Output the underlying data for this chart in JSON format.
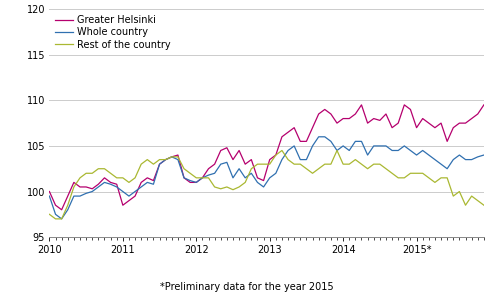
{
  "title": "",
  "footnote": "*Preliminary data for the year 2015",
  "ylim": [
    95,
    120
  ],
  "yticks": [
    95,
    100,
    105,
    110,
    115,
    120
  ],
  "xlim_start": 2010.0,
  "xlim_end": 2015.92,
  "xtick_labels": [
    "2010",
    "2011",
    "2012",
    "2013",
    "2014",
    "2015*"
  ],
  "legend_labels": [
    "Greater Helsinki",
    "Whole country",
    "Rest of the country"
  ],
  "colors": [
    "#b5006e",
    "#3070b0",
    "#aab832"
  ],
  "background_color": "#ffffff",
  "grid_color": "#cccccc",
  "greater_helsinki": [
    100.0,
    98.5,
    98.0,
    99.5,
    101.0,
    100.5,
    100.5,
    100.3,
    100.8,
    101.5,
    101.0,
    100.8,
    98.5,
    99.0,
    99.5,
    101.0,
    101.5,
    101.2,
    103.0,
    103.5,
    103.8,
    104.0,
    101.5,
    101.0,
    101.0,
    101.5,
    102.5,
    103.0,
    104.5,
    104.8,
    103.5,
    104.5,
    103.0,
    103.5,
    101.5,
    101.2,
    103.5,
    104.0,
    106.0,
    106.5,
    107.0,
    105.5,
    105.5,
    107.0,
    108.5,
    109.0,
    108.5,
    107.5,
    108.0,
    108.0,
    108.5,
    109.5,
    107.5,
    108.0,
    107.8,
    108.5,
    107.0,
    107.5,
    109.5,
    109.0,
    107.0,
    108.0,
    107.5,
    107.0,
    107.5,
    105.5,
    107.0,
    107.5,
    107.5,
    108.0,
    108.5,
    109.5
  ],
  "whole_country": [
    99.5,
    97.5,
    97.0,
    98.0,
    99.5,
    99.5,
    99.8,
    100.0,
    100.5,
    101.0,
    100.8,
    100.5,
    100.0,
    99.5,
    100.0,
    100.5,
    101.0,
    100.8,
    103.0,
    103.5,
    103.8,
    103.5,
    101.5,
    101.2,
    101.0,
    101.5,
    101.8,
    102.0,
    103.0,
    103.2,
    101.5,
    102.5,
    101.5,
    102.0,
    101.0,
    100.5,
    101.5,
    102.0,
    103.5,
    104.5,
    105.0,
    103.5,
    103.5,
    105.0,
    106.0,
    106.0,
    105.5,
    104.5,
    105.0,
    104.5,
    105.5,
    105.5,
    104.0,
    105.0,
    105.0,
    105.0,
    104.5,
    104.5,
    105.0,
    104.5,
    104.0,
    104.5,
    104.0,
    103.5,
    103.0,
    102.5,
    103.5,
    104.0,
    103.5,
    103.5,
    103.8,
    104.0
  ],
  "rest_of_country": [
    97.5,
    97.0,
    97.0,
    98.5,
    100.5,
    101.5,
    102.0,
    102.0,
    102.5,
    102.5,
    102.0,
    101.5,
    101.5,
    101.0,
    101.5,
    103.0,
    103.5,
    103.0,
    103.5,
    103.5,
    103.8,
    103.8,
    102.5,
    102.0,
    101.5,
    101.5,
    101.5,
    100.5,
    100.3,
    100.5,
    100.2,
    100.5,
    101.0,
    102.5,
    103.0,
    103.0,
    103.0,
    104.0,
    104.5,
    103.5,
    103.0,
    103.0,
    102.5,
    102.0,
    102.5,
    103.0,
    103.0,
    104.5,
    103.0,
    103.0,
    103.5,
    103.0,
    102.5,
    103.0,
    103.0,
    102.5,
    102.0,
    101.5,
    101.5,
    102.0,
    102.0,
    102.0,
    101.5,
    101.0,
    101.5,
    101.5,
    99.5,
    100.0,
    98.5,
    99.5,
    99.0,
    98.5
  ]
}
